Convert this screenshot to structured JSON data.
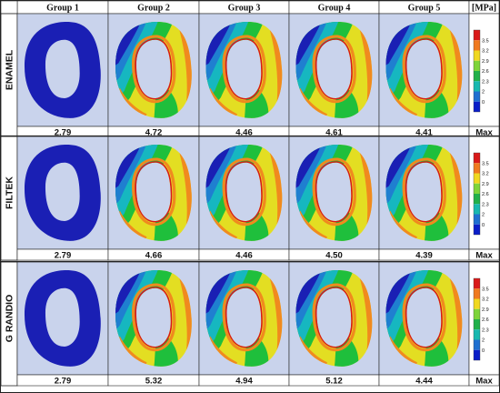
{
  "header": {
    "columns": [
      "Group 1",
      "Group 2",
      "Group 3",
      "Group 4",
      "Group 5"
    ],
    "unit": "[MPa]"
  },
  "rows": [
    {
      "label": "ENAMEL",
      "values": [
        "2.79",
        "4.72",
        "4.46",
        "4.61",
        "4.41"
      ],
      "max_label": "Max"
    },
    {
      "label": "FILTEK",
      "values": [
        "2.79",
        "4.66",
        "4.46",
        "4.50",
        "4.39"
      ],
      "max_label": "Max"
    },
    {
      "label": "G RANDIO",
      "values": [
        "2.79",
        "5.32",
        "4.94",
        "5.12",
        "4.44"
      ],
      "max_label": "Max"
    }
  ],
  "legend": {
    "ticks": [
      "3.5",
      "3.2",
      "2.9",
      "2.6",
      "2.3",
      "2",
      "0"
    ],
    "colors": [
      "#d91a1a",
      "#f07a20",
      "#f0d820",
      "#7ed43a",
      "#21b04a",
      "#18b8b0",
      "#1f6fd0",
      "#0a1ec8"
    ]
  },
  "colors": {
    "background_fill": "#c9d3ec",
    "uniform_fill": "#1a1fb4",
    "low": "#1a1fb4",
    "mid_low": "#1f7fd0",
    "cyan": "#16b7c0",
    "green": "#1fbf3c",
    "light_green": "#86d43a",
    "yellow": "#e3de22",
    "orange": "#f08a1e",
    "red": "#d81818"
  }
}
